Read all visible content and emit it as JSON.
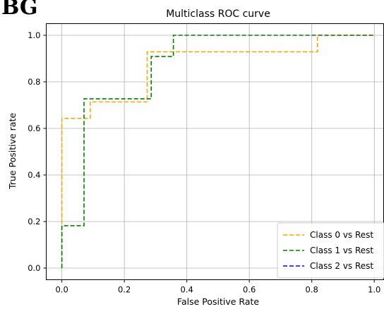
{
  "cut_off_text": "BG",
  "chart_data": {
    "type": "line",
    "title": "Multiclass ROC curve",
    "xlabel": "False Positive Rate",
    "ylabel": "True Positive rate",
    "xlim": [
      -0.05,
      1.03
    ],
    "ylim": [
      -0.05,
      1.05
    ],
    "xticks": [
      0.0,
      0.2,
      0.4,
      0.6,
      0.8,
      1.0
    ],
    "yticks": [
      0.0,
      0.2,
      0.4,
      0.6,
      0.8,
      1.0
    ],
    "tick_format": "0.0",
    "grid": true,
    "legend_position": "lower-right",
    "line_style": "dashed",
    "series": [
      {
        "name": "Class 0 vs Rest",
        "color": "#ffa500",
        "x": [
          0.0,
          0.0,
          0.0,
          0.091,
          0.091,
          0.273,
          0.273,
          0.818,
          0.818,
          1.0
        ],
        "y": [
          0.0,
          0.571,
          0.643,
          0.643,
          0.714,
          0.714,
          0.929,
          0.929,
          1.0,
          1.0
        ]
      },
      {
        "name": "Class 1 vs Rest",
        "color": "#008000",
        "x": [
          0.0,
          0.0,
          0.071,
          0.071,
          0.286,
          0.286,
          0.357,
          0.357,
          1.0
        ],
        "y": [
          0.0,
          0.182,
          0.182,
          0.727,
          0.727,
          0.909,
          0.909,
          1.0,
          1.0
        ]
      },
      {
        "name": "Class 2 vs Rest",
        "color": "#0000ff",
        "x": [],
        "y": []
      }
    ]
  }
}
